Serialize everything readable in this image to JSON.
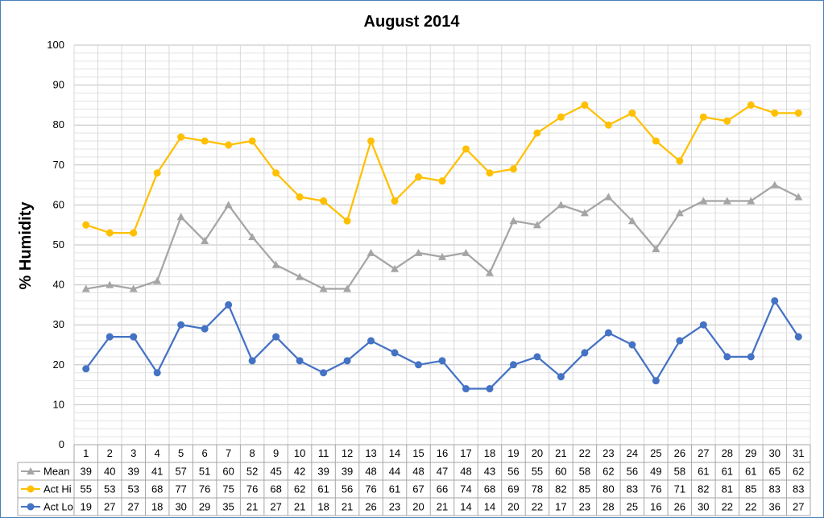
{
  "chart_data": {
    "type": "line",
    "title": "August 2014",
    "ylabel": "% Humidity",
    "ylim": [
      0,
      100
    ],
    "yticks": [
      0,
      10,
      20,
      30,
      40,
      50,
      60,
      70,
      80,
      90,
      100
    ],
    "grid": true,
    "legend": "data-table-left",
    "categories": [
      "1",
      "2",
      "3",
      "4",
      "5",
      "6",
      "7",
      "8",
      "9",
      "10",
      "11",
      "12",
      "13",
      "14",
      "15",
      "16",
      "17",
      "18",
      "19",
      "20",
      "21",
      "22",
      "23",
      "24",
      "25",
      "26",
      "27",
      "28",
      "29",
      "30",
      "31"
    ],
    "series": [
      {
        "name": "Mean",
        "color": "#a5a5a5",
        "marker": "triangle",
        "values": [
          39,
          40,
          39,
          41,
          57,
          51,
          60,
          52,
          45,
          42,
          39,
          39,
          48,
          44,
          48,
          47,
          48,
          43,
          56,
          55,
          60,
          58,
          62,
          56,
          49,
          58,
          61,
          61,
          61,
          65,
          62
        ]
      },
      {
        "name": "Act Hi",
        "color": "#ffc000",
        "marker": "circle",
        "values": [
          55,
          53,
          53,
          68,
          77,
          76,
          75,
          76,
          68,
          62,
          61,
          56,
          76,
          61,
          67,
          66,
          74,
          68,
          69,
          78,
          82,
          85,
          80,
          83,
          76,
          71,
          82,
          81,
          85,
          83,
          83
        ]
      },
      {
        "name": "Act Lo",
        "color": "#4472c4",
        "marker": "circle",
        "values": [
          19,
          27,
          27,
          18,
          30,
          29,
          35,
          21,
          27,
          21,
          18,
          21,
          26,
          23,
          20,
          21,
          14,
          14,
          20,
          22,
          17,
          23,
          28,
          25,
          16,
          26,
          30,
          22,
          22,
          36,
          27
        ]
      }
    ]
  }
}
